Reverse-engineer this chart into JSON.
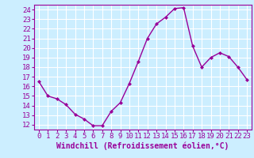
{
  "x": [
    0,
    1,
    2,
    3,
    4,
    5,
    6,
    7,
    8,
    9,
    10,
    11,
    12,
    13,
    14,
    15,
    16,
    17,
    18,
    19,
    20,
    21,
    22,
    23
  ],
  "y": [
    16.5,
    15.0,
    14.7,
    14.1,
    13.1,
    12.6,
    11.9,
    11.9,
    13.4,
    14.3,
    16.3,
    18.6,
    21.0,
    22.5,
    23.2,
    24.1,
    24.2,
    20.2,
    18.0,
    19.0,
    19.5,
    19.1,
    18.0,
    16.7
  ],
  "line_color": "#990099",
  "marker": "D",
  "marker_size": 2,
  "xlabel": "Windchill (Refroidissement éolien,°C)",
  "xlim": [
    -0.5,
    23.5
  ],
  "ylim": [
    11.5,
    24.5
  ],
  "yticks": [
    12,
    13,
    14,
    15,
    16,
    17,
    18,
    19,
    20,
    21,
    22,
    23,
    24
  ],
  "xticks": [
    0,
    1,
    2,
    3,
    4,
    5,
    6,
    7,
    8,
    9,
    10,
    11,
    12,
    13,
    14,
    15,
    16,
    17,
    18,
    19,
    20,
    21,
    22,
    23
  ],
  "background_color": "#cceeff",
  "grid_color": "#ffffff",
  "tick_color": "#990099",
  "label_color": "#990099",
  "font_size": 6.5,
  "xlabel_fontsize": 7,
  "linewidth": 1.0
}
